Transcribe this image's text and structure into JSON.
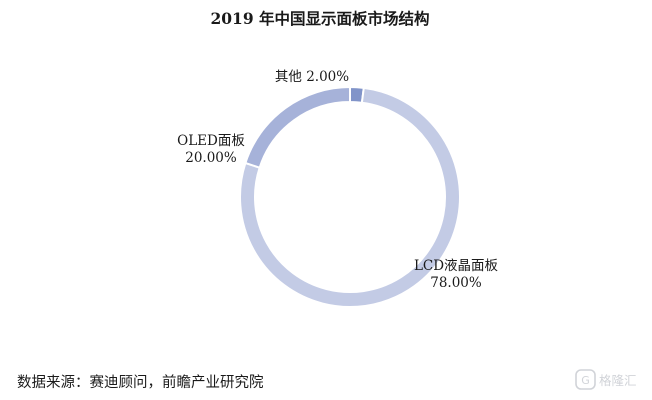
{
  "chart_data": {
    "type": "pie",
    "variant": "donut",
    "title": "2019 年中国显示面板市场结构",
    "categories": [
      "LCD液晶面板",
      "OLED面板",
      "其他"
    ],
    "values": [
      78.0,
      20.0,
      2.0
    ],
    "value_labels": [
      "78.00%",
      "20.00%",
      "2.00%"
    ],
    "colors": [
      "#c3cbe5",
      "#a6b2d9",
      "#8194c9"
    ]
  },
  "source": "数据来源：赛迪顾问，前瞻产业研究院",
  "watermark": {
    "text": "格隆汇",
    "icon": "gelonghui-logo-icon"
  }
}
